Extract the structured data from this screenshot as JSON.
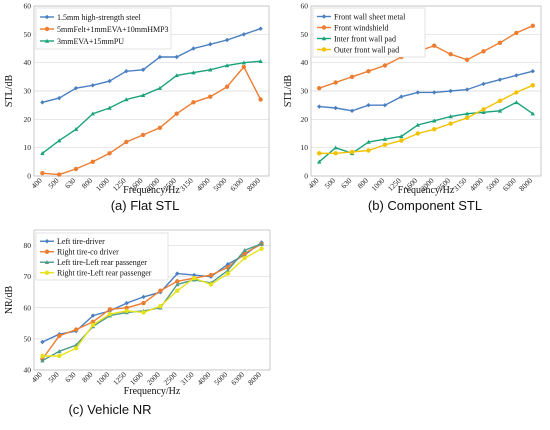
{
  "chart_data": [
    {
      "type": "line",
      "caption": "(a) Flat STL",
      "xlabel": "Frequency/Hz",
      "ylabel": "STL/dB",
      "ylim": [
        0,
        60
      ],
      "yticks": [
        0,
        10,
        20,
        30,
        40,
        50,
        60
      ],
      "grid": "horizontal",
      "legend": "top-left",
      "categories": [
        "400",
        "500",
        "630",
        "800",
        "1000",
        "1250",
        "1600",
        "2000",
        "2500",
        "3150",
        "4000",
        "5000",
        "6300",
        "8000"
      ],
      "series": [
        {
          "name": "1.5mm high-strength steel",
          "color": "#4a7fc1",
          "marker": "diamond",
          "values": [
            26,
            27.5,
            31,
            32,
            33.5,
            37,
            37.5,
            42,
            42,
            45,
            46.5,
            48,
            50,
            52
          ]
        },
        {
          "name": "5mmFelt+1mmEVA+10mmHMP3",
          "color": "#ed7d31",
          "marker": "circle",
          "values": [
            1,
            0.5,
            2.5,
            5,
            8,
            12,
            14.5,
            17,
            22,
            26,
            28,
            31.5,
            38.5,
            27
          ]
        },
        {
          "name": "3mmEVA+15mmPU",
          "color": "#1aa37a",
          "marker": "triangle",
          "values": [
            8,
            12.5,
            16.5,
            22,
            24,
            27,
            28.5,
            31,
            35.5,
            36.5,
            37.5,
            39,
            40,
            40.5
          ]
        }
      ]
    },
    {
      "type": "line",
      "caption": "(b) Component  STL",
      "xlabel": "Frequency/Hz",
      "ylabel": "STL/dB",
      "ylim": [
        0,
        60
      ],
      "yticks": [
        0,
        10,
        20,
        30,
        40,
        50,
        60
      ],
      "grid": "horizontal",
      "legend": "top-left",
      "categories": [
        "400",
        "500",
        "630",
        "800",
        "1000",
        "1250",
        "1600",
        "2000",
        "2500",
        "3150",
        "4000",
        "5000",
        "6300",
        "8000"
      ],
      "series": [
        {
          "name": "Front wall sheet metal",
          "color": "#4a7fc1",
          "marker": "diamond",
          "values": [
            24.5,
            24,
            23,
            25,
            25,
            28,
            29.5,
            29.5,
            30,
            30.5,
            32.5,
            34,
            35.5,
            37
          ]
        },
        {
          "name": "Front windshield",
          "color": "#ed7d31",
          "marker": "circle",
          "values": [
            31,
            33,
            35,
            37,
            39,
            42,
            44,
            46,
            43,
            41,
            44,
            47,
            50.5,
            53
          ]
        },
        {
          "name": "Inter front wall pad",
          "color": "#1aa37a",
          "marker": "triangle",
          "values": [
            5,
            10,
            8,
            12,
            13,
            14,
            18,
            19.5,
            21,
            22,
            22.5,
            23,
            26,
            22
          ]
        },
        {
          "name": "Outer front wall pad",
          "color": "#f2c200",
          "marker": "circle",
          "values": [
            8,
            8,
            8.5,
            9,
            11,
            12.5,
            15,
            16.5,
            18.5,
            20.5,
            23.5,
            26.5,
            29.5,
            32
          ]
        }
      ]
    },
    {
      "type": "line",
      "caption": "(c) Vehicle   NR",
      "xlabel": "Frequency/Hz",
      "ylabel": "NR/dB",
      "ylim": [
        40,
        85
      ],
      "yticks": [
        40,
        50,
        60,
        70,
        80
      ],
      "grid": "horizontal",
      "legend": "top-left",
      "categories": [
        "400",
        "500",
        "630",
        "800",
        "1000",
        "1250",
        "1600",
        "2000",
        "2500",
        "3150",
        "4000",
        "5000",
        "6300",
        "8000"
      ],
      "series": [
        {
          "name": "Left tire-driver",
          "color": "#4a7fc1",
          "marker": "diamond",
          "values": [
            49,
            51.5,
            52.5,
            57.5,
            59,
            61.5,
            63.5,
            65,
            71,
            70.5,
            70,
            74,
            77,
            81
          ]
        },
        {
          "name": "Right tire-co driver",
          "color": "#ed7d31",
          "marker": "circle",
          "values": [
            43.5,
            51,
            53,
            55.5,
            59.5,
            60,
            61.5,
            65.5,
            68.5,
            69.5,
            70.5,
            73,
            77.5,
            80.5
          ]
        },
        {
          "name": "Left tire-Left rear passenger",
          "color": "#4f9a8a",
          "marker": "triangle",
          "values": [
            43,
            46,
            48,
            54,
            57.5,
            58.5,
            59,
            60,
            67.5,
            69,
            68,
            72,
            78.5,
            80.5
          ]
        },
        {
          "name": "Right tire-Left rear passenger",
          "color": "#e6e21a",
          "marker": "circle",
          "values": [
            44.5,
            44.5,
            47,
            54.5,
            58,
            59,
            58.5,
            60.5,
            65.5,
            69.5,
            67.5,
            71,
            76,
            79
          ]
        }
      ]
    }
  ]
}
